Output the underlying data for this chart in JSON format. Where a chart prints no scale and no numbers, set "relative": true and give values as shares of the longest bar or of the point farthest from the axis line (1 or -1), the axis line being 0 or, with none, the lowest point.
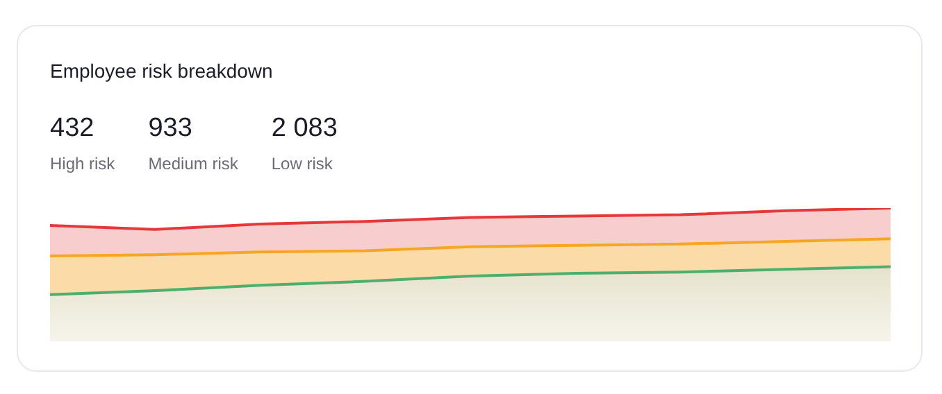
{
  "chart_data": {
    "type": "area",
    "title": "Employee risk breakdown",
    "relative": true,
    "stacked": true,
    "legend": false,
    "tick_labels": false,
    "annotations": [
      "432",
      "High risk",
      "933",
      "Medium risk",
      "2 083",
      "Low risk"
    ],
    "categories": [
      null,
      null,
      null,
      null,
      null,
      null,
      null,
      null,
      null
    ],
    "series": [
      {
        "color": "#4caf6e",
        "values": [
          0.35,
          0.38,
          0.42,
          0.45,
          0.49,
          0.51,
          0.52,
          0.54,
          0.56
        ]
      },
      {
        "color": "#f5a623",
        "values": [
          0.29,
          0.27,
          0.25,
          0.23,
          0.22,
          0.21,
          0.21,
          0.21,
          0.21
        ]
      },
      {
        "color": "#e5383b",
        "values": [
          0.23,
          0.19,
          0.21,
          0.22,
          0.22,
          0.22,
          0.22,
          0.23,
          0.23
        ]
      }
    ]
  }
}
